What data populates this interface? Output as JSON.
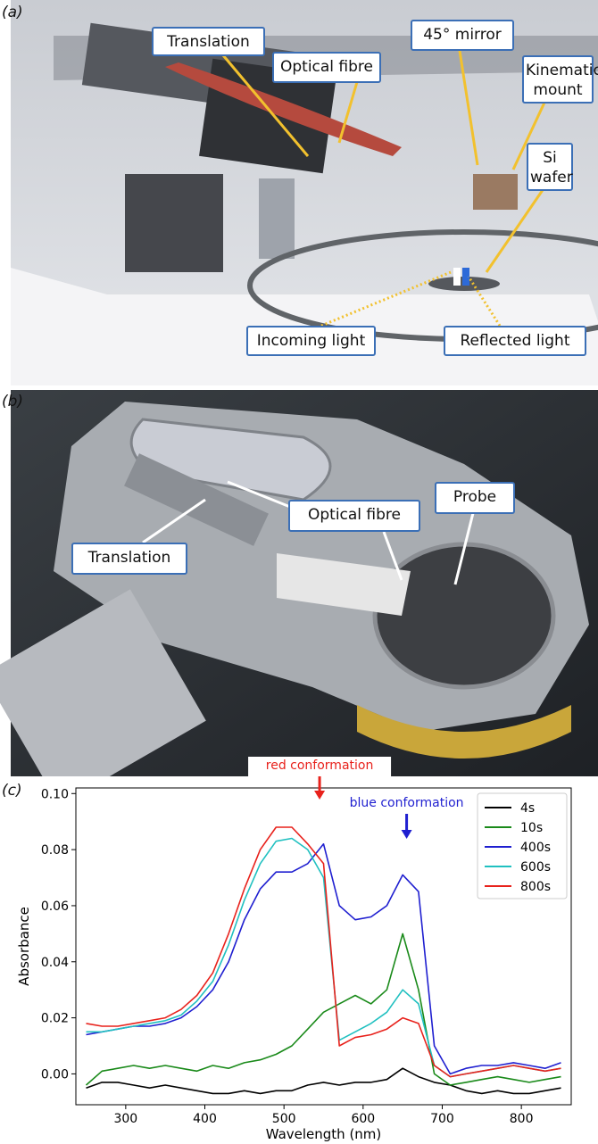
{
  "panel_a": {
    "label": "(a)",
    "callouts": [
      "Translation",
      "Optical fibre",
      "45° mirror",
      "Kinematic mount",
      "Si wafer",
      "Incoming light",
      "Reflected light"
    ]
  },
  "panel_b": {
    "label": "(b)",
    "callouts": [
      "Probe",
      "Optical fibre",
      "Translation"
    ]
  },
  "panel_c": {
    "label": "(c)"
  },
  "chart_data": {
    "type": "line",
    "xlabel": "Wavelength (nm)",
    "ylabel": "Absorbance",
    "x": [
      250,
      270,
      290,
      310,
      330,
      350,
      370,
      390,
      410,
      430,
      450,
      470,
      490,
      510,
      530,
      550,
      570,
      590,
      610,
      630,
      650,
      670,
      690,
      710,
      730,
      750,
      770,
      790,
      810,
      830,
      850
    ],
    "series": [
      {
        "name": "4s",
        "color": "#000000",
        "values": [
          -0.005,
          -0.003,
          -0.003,
          -0.004,
          -0.005,
          -0.004,
          -0.005,
          -0.006,
          -0.007,
          -0.007,
          -0.006,
          -0.007,
          -0.006,
          -0.006,
          -0.004,
          -0.003,
          -0.004,
          -0.003,
          -0.003,
          -0.002,
          0.002,
          -0.001,
          -0.003,
          -0.004,
          -0.006,
          -0.007,
          -0.006,
          -0.007,
          -0.007,
          -0.006,
          -0.005
        ]
      },
      {
        "name": "10s",
        "color": "#1a8a1a",
        "values": [
          -0.004,
          0.001,
          0.002,
          0.003,
          0.002,
          0.003,
          0.002,
          0.001,
          0.003,
          0.002,
          0.004,
          0.005,
          0.007,
          0.01,
          0.016,
          0.022,
          0.025,
          0.028,
          0.025,
          0.03,
          0.05,
          0.03,
          0.0,
          -0.004,
          -0.003,
          -0.002,
          -0.001,
          -0.002,
          -0.003,
          -0.002,
          -0.001
        ]
      },
      {
        "name": "400s",
        "color": "#1f1fd0",
        "values": [
          0.014,
          0.015,
          0.016,
          0.017,
          0.017,
          0.018,
          0.02,
          0.024,
          0.03,
          0.04,
          0.055,
          0.066,
          0.072,
          0.072,
          0.075,
          0.082,
          0.06,
          0.055,
          0.056,
          0.06,
          0.071,
          0.065,
          0.01,
          0.0,
          0.002,
          0.003,
          0.003,
          0.004,
          0.003,
          0.002,
          0.004
        ]
      },
      {
        "name": "600s",
        "color": "#20c0c0",
        "values": [
          0.015,
          0.015,
          0.016,
          0.017,
          0.018,
          0.019,
          0.021,
          0.026,
          0.033,
          0.046,
          0.062,
          0.075,
          0.083,
          0.084,
          0.08,
          0.07,
          0.012,
          0.015,
          0.018,
          0.022,
          0.03,
          0.025,
          0.003,
          -0.001,
          0.0,
          0.001,
          0.002,
          0.003,
          0.002,
          0.001,
          0.002
        ]
      },
      {
        "name": "800s",
        "color": "#e8221c",
        "values": [
          0.018,
          0.017,
          0.017,
          0.018,
          0.019,
          0.02,
          0.023,
          0.028,
          0.036,
          0.05,
          0.066,
          0.08,
          0.088,
          0.088,
          0.082,
          0.075,
          0.01,
          0.013,
          0.014,
          0.016,
          0.02,
          0.018,
          0.003,
          -0.001,
          0.0,
          0.001,
          0.002,
          0.003,
          0.002,
          0.001,
          0.002
        ]
      }
    ],
    "xlim": [
      237,
      863
    ],
    "ylim": [
      -0.011,
      0.102
    ],
    "xticks": [
      300,
      400,
      500,
      600,
      700,
      800
    ],
    "yticks": [
      {
        "value": 0,
        "label": "0.00"
      },
      {
        "value": 0.02,
        "label": "0.02"
      },
      {
        "value": 0.04,
        "label": "0.04"
      },
      {
        "value": 0.06,
        "label": "0.06"
      },
      {
        "value": 0.08,
        "label": "0.08"
      },
      {
        "value": 0.1,
        "label": "0.10"
      }
    ],
    "annotations": [
      {
        "text": "red conformation",
        "color": "#e8221c",
        "x": 545
      },
      {
        "text": "blue conformation",
        "color": "#1f1fd0",
        "x": 655
      }
    ],
    "legend": "upper right",
    "grid": false
  }
}
